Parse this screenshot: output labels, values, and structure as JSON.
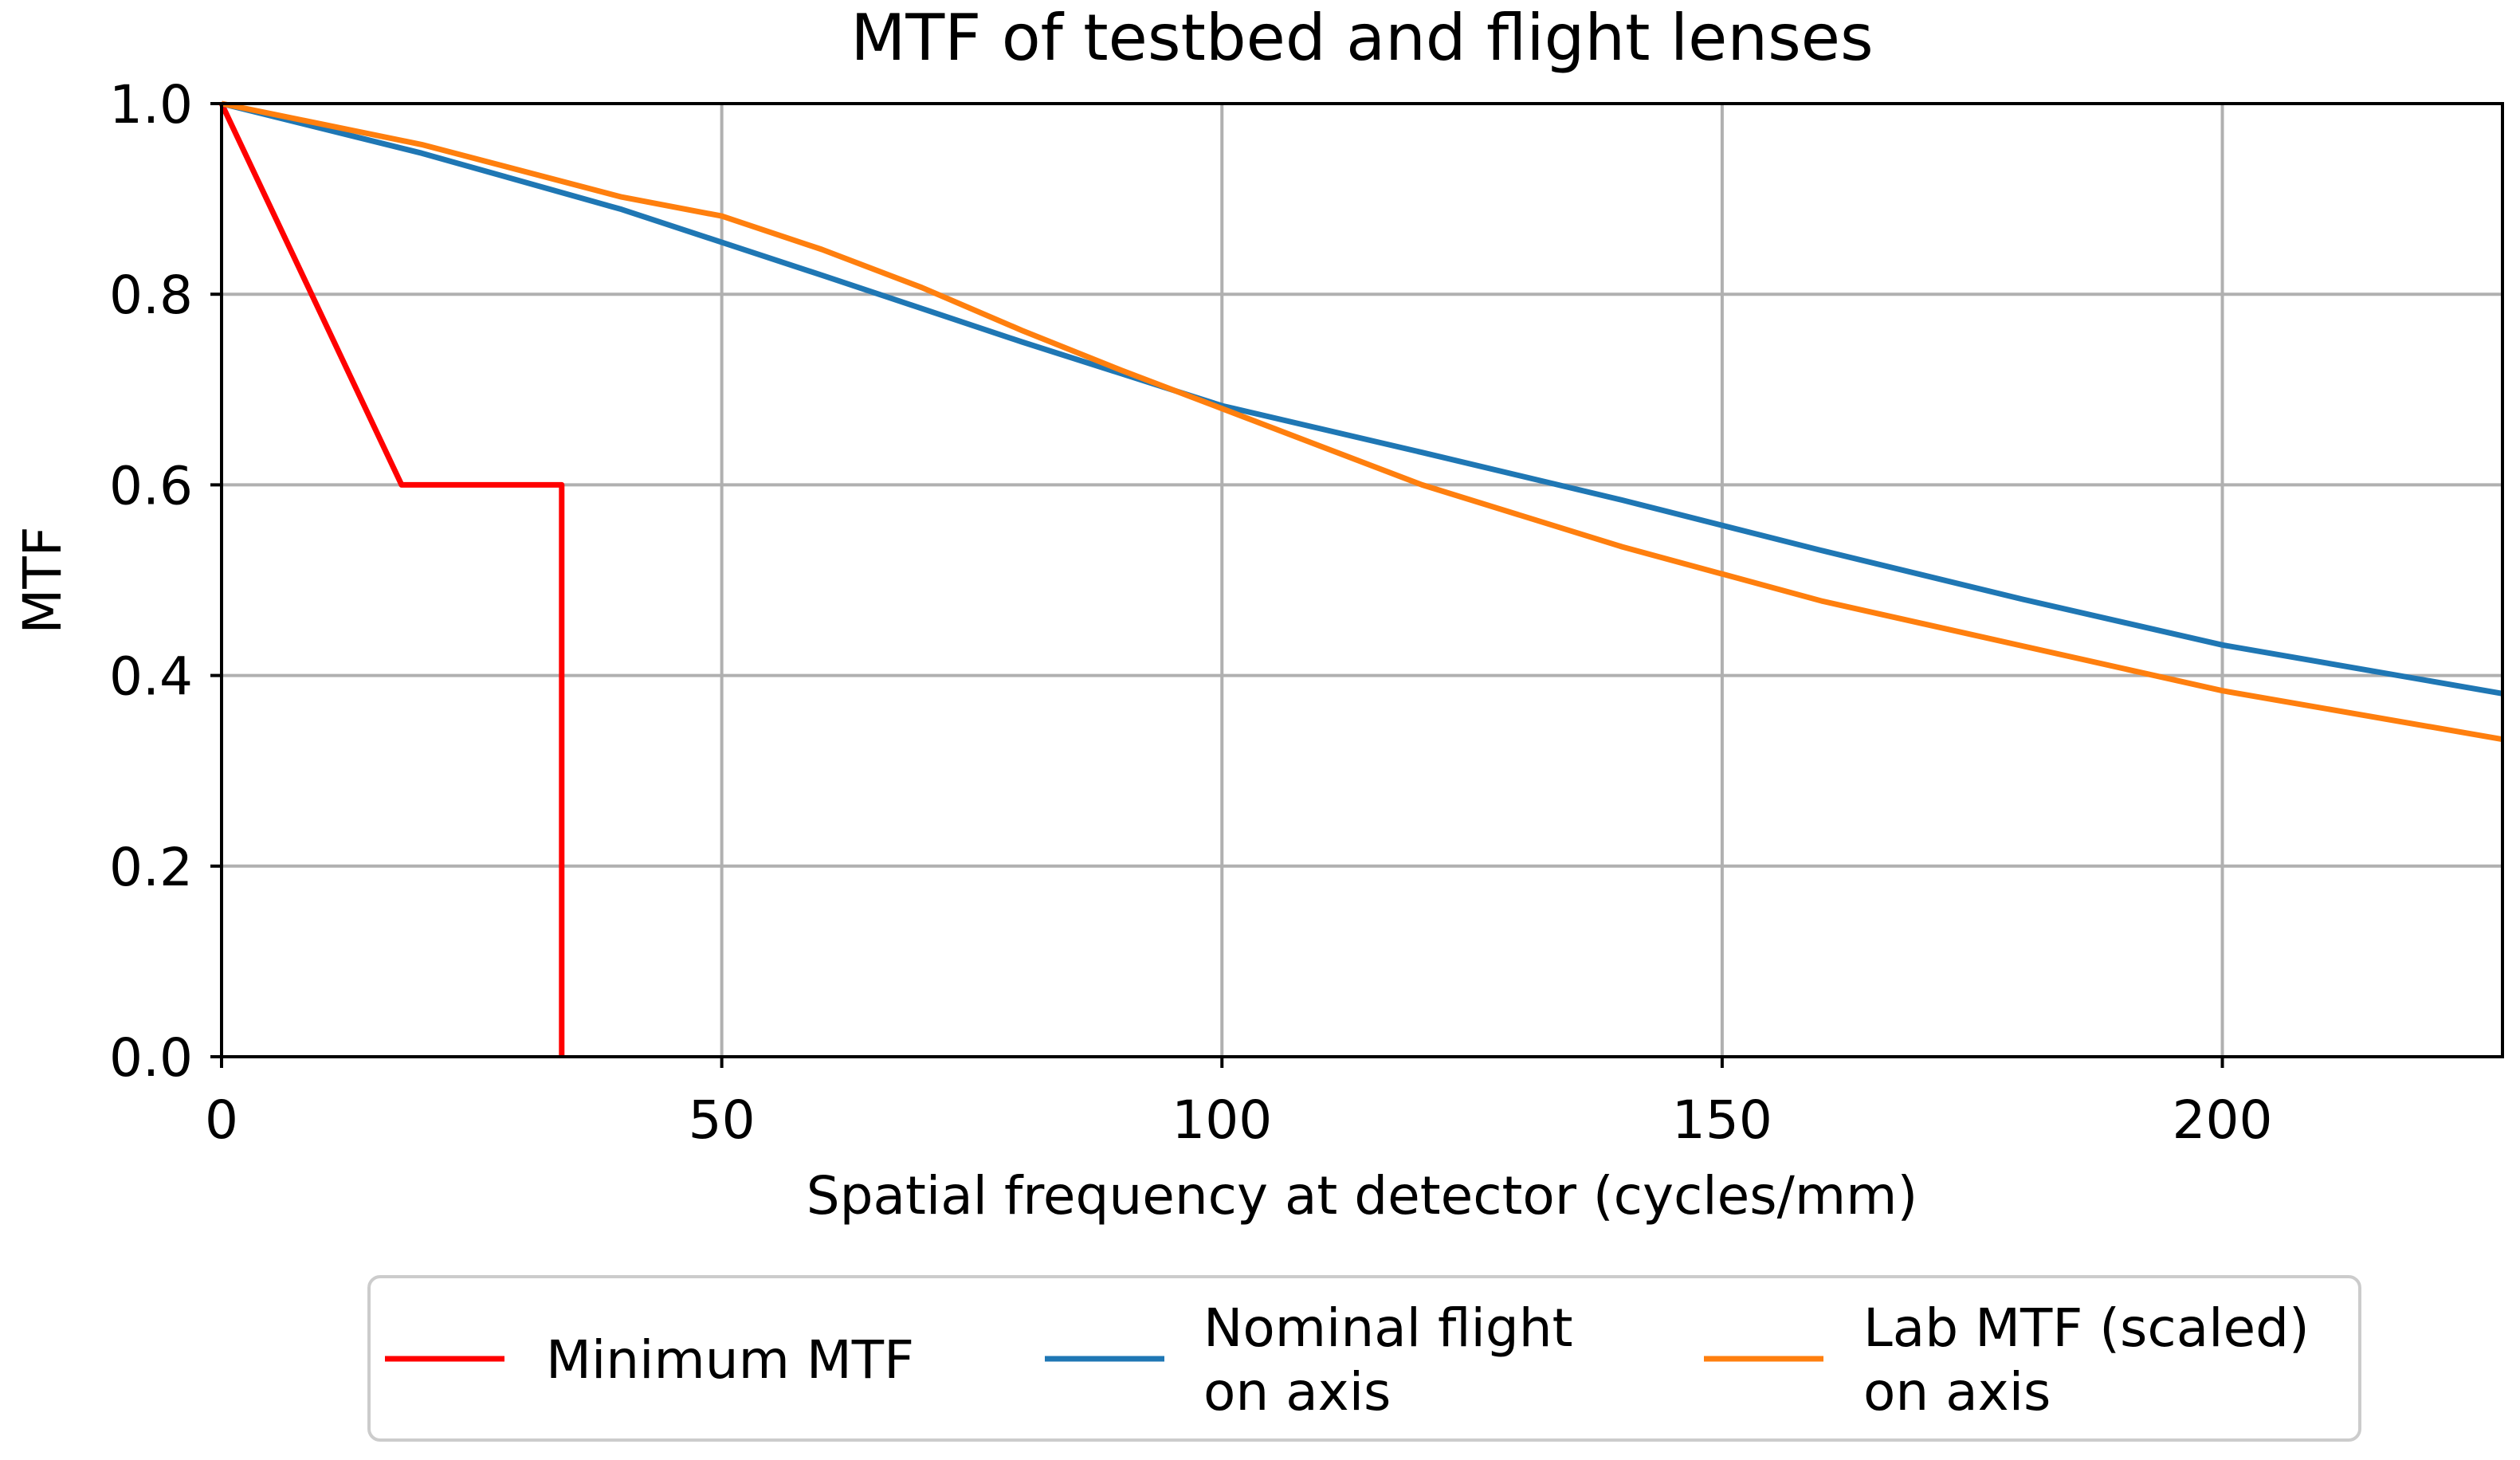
{
  "chart_data": {
    "type": "line",
    "title": "MTF of testbed and flight lenses",
    "xlabel": "Spatial frequency at detector (cycles/mm)",
    "ylabel": "MTF",
    "xlim": [
      0,
      228
    ],
    "ylim": [
      0,
      1.0
    ],
    "grid": true,
    "legend_position": "bottom-center, below plot",
    "xticks": [
      {
        "value": 0,
        "label": "0"
      },
      {
        "value": 50,
        "label": "50"
      },
      {
        "value": 100,
        "label": "100"
      },
      {
        "value": 150,
        "label": "150"
      },
      {
        "value": 200,
        "label": "200"
      }
    ],
    "yticks": [
      {
        "value": 0.0,
        "label": "0.0"
      },
      {
        "value": 0.2,
        "label": "0.2"
      },
      {
        "value": 0.4,
        "label": "0.4"
      },
      {
        "value": 0.6,
        "label": "0.6"
      },
      {
        "value": 0.8,
        "label": "0.8"
      },
      {
        "value": 1.0,
        "label": "1.0"
      }
    ],
    "series": [
      {
        "name": "Minimum MTF",
        "legend_lines": [
          "Minimum MTF"
        ],
        "color": "#ff0000",
        "x": [
          0,
          18,
          34,
          34
        ],
        "y": [
          1.0,
          0.6,
          0.6,
          0.0
        ]
      },
      {
        "name": "Nominal flight on axis",
        "legend_lines": [
          "Nominal flight",
          "on axis"
        ],
        "color": "#1f77b4",
        "x": [
          0,
          20,
          40,
          60,
          80,
          100,
          120,
          140,
          160,
          180,
          200,
          228
        ],
        "y": [
          1.0,
          0.948,
          0.889,
          0.82,
          0.75,
          0.683,
          0.634,
          0.584,
          0.531,
          0.48,
          0.432,
          0.381
        ]
      },
      {
        "name": "Lab MTF (scaled) on axis",
        "legend_lines": [
          "Lab MTF (scaled)",
          "on axis"
        ],
        "color": "#ff7f0e",
        "x": [
          0,
          20,
          40,
          50,
          60,
          70,
          80,
          90,
          100,
          120,
          140,
          160,
          180,
          200,
          228
        ],
        "y": [
          1.0,
          0.957,
          0.902,
          0.882,
          0.847,
          0.807,
          0.762,
          0.72,
          0.68,
          0.6,
          0.535,
          0.478,
          0.431,
          0.384,
          0.333
        ]
      }
    ]
  }
}
